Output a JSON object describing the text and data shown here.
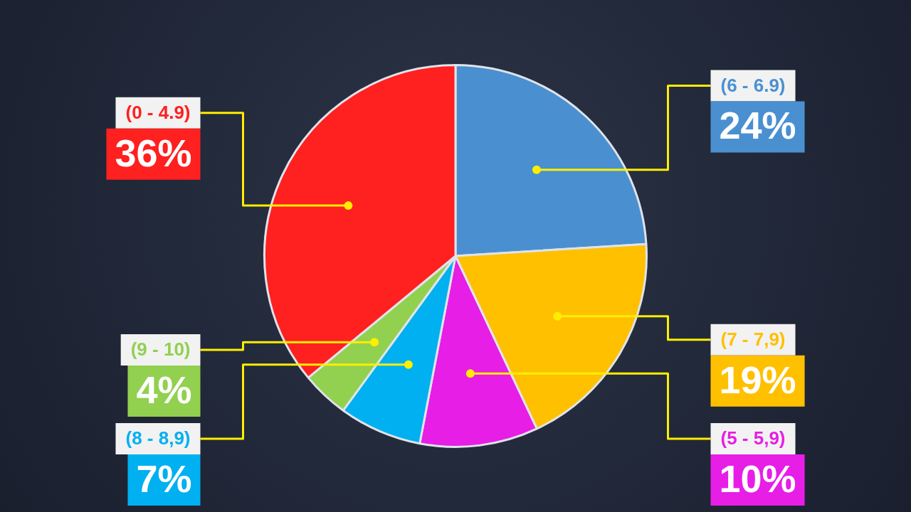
{
  "chart_data": {
    "type": "pie",
    "categories": [
      "(6 - 6.9)",
      "(7 - 7,9)",
      "(5 - 5,9)",
      "(8 - 8,9)",
      "(9 - 10)",
      "(0 - 4.9)"
    ],
    "values": [
      24,
      19,
      10,
      7,
      4,
      36
    ],
    "colors": [
      "#4a90d0",
      "#ffc000",
      "#e61ee6",
      "#00b0f0",
      "#92d050",
      "#ff2020"
    ],
    "value_labels": [
      "24%",
      "19%",
      "10%",
      "7%",
      "4%",
      "36%"
    ]
  }
}
